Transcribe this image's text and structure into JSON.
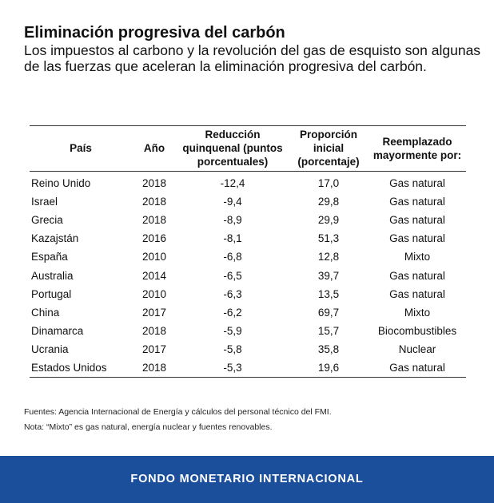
{
  "title": "Eliminación progresiva del carbón",
  "subtitle": "Los impuestos al carbono y la revolución del gas de esquisto son algunas de las fuerzas que aceleran la eliminación progresiva del carbón.",
  "chart_data": {
    "type": "table",
    "columns": [
      "País",
      "Año",
      "Reducción quinquenal (puntos porcentuales)",
      "Proporción inicial (porcentaje)",
      "Reemplazado mayormente por:"
    ],
    "rows": [
      [
        "Reino Unido",
        "2018",
        "-12,4",
        "17,0",
        "Gas natural"
      ],
      [
        "Israel",
        "2018",
        "-9,4",
        "29,8",
        "Gas natural"
      ],
      [
        "Grecia",
        "2018",
        "-8,9",
        "29,9",
        "Gas natural"
      ],
      [
        "Kazajstán",
        "2016",
        "-8,1",
        "51,3",
        "Gas natural"
      ],
      [
        "España",
        "2010",
        "-6,8",
        "12,8",
        "Mixto"
      ],
      [
        "Australia",
        "2014",
        "-6,5",
        "39,7",
        "Gas natural"
      ],
      [
        "Portugal",
        "2010",
        "-6,3",
        "13,5",
        "Gas natural"
      ],
      [
        "China",
        "2017",
        "-6,2",
        "69,7",
        "Mixto"
      ],
      [
        "Dinamarca",
        "2018",
        "-5,9",
        "15,7",
        "Biocombustibles"
      ],
      [
        "Ucrania",
        "2017",
        "-5,8",
        "35,8",
        "Nuclear"
      ],
      [
        "Estados Unidos",
        "2018",
        "-5,3",
        "19,6",
        "Gas natural"
      ]
    ]
  },
  "notes": {
    "sources": "Fuentes: Agencia Internacional de Energía y cálculos del personal técnico del FMI.",
    "note": "Nota: “Mixto” es gas natural, energía nuclear y fuentes renovables."
  },
  "footer": {
    "label": "FONDO MONETARIO INTERNACIONAL",
    "color": "#1b4f9c"
  }
}
